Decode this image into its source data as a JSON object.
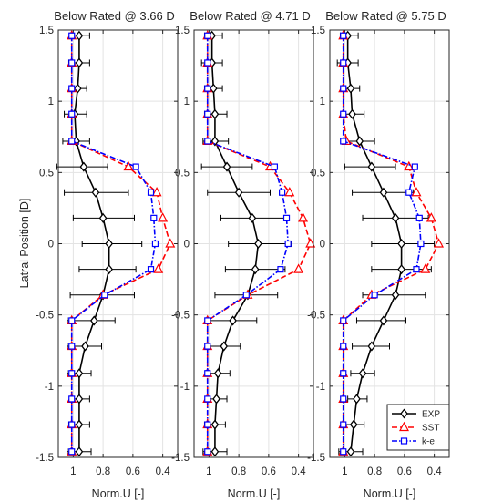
{
  "chart_data": {
    "type": "line",
    "ylabel": "Latral Position [D]",
    "xlabel": "Norm.U [-]",
    "ylim": [
      -1.5,
      1.5
    ],
    "yticks": [
      -1.5,
      -1,
      -0.5,
      0,
      0.5,
      1,
      1.5
    ],
    "xlim": [
      1.1,
      0.3
    ],
    "xaxis_reversed": true,
    "xticks": [
      1,
      0.8,
      0.6,
      0.4
    ],
    "grid": true,
    "legend_position": "bottom-right of right panel",
    "y": [
      1.46,
      1.27,
      1.09,
      0.91,
      0.72,
      0.54,
      0.36,
      0.18,
      0,
      -0.18,
      -0.36,
      -0.54,
      -0.72,
      -0.91,
      -1.09,
      -1.27,
      -1.46
    ],
    "series_style": {
      "EXP": {
        "color": "#000000",
        "dash": "",
        "marker": "diamond"
      },
      "SST": {
        "color": "#ff0000",
        "dash": "6,3",
        "marker": "triangle"
      },
      "k-e": {
        "color": "#0000ff",
        "dash": "6,2,1.5,2",
        "marker": "square"
      }
    },
    "panels": [
      {
        "title": "Below Rated @ 3.66 D",
        "series": [
          {
            "name": "EXP",
            "values": [
              0.96,
              0.96,
              0.97,
              0.99,
              0.98,
              0.93,
              0.85,
              0.8,
              0.76,
              0.76,
              0.8,
              0.86,
              0.92,
              0.96,
              0.96,
              0.96,
              0.96
            ],
            "err_minus": [
              0.06,
              0.07,
              0.05,
              0.07,
              0.09,
              0.18,
              0.21,
              0.2,
              0.18,
              0.2,
              0.22,
              0.18,
              0.12,
              0.08,
              0.06,
              0.07,
              0.08
            ],
            "err_plus": [
              0.07,
              0.07,
              0.06,
              0.08,
              0.09,
              0.16,
              0.22,
              0.21,
              0.22,
              0.18,
              0.21,
              0.14,
              0.11,
              0.08,
              0.07,
              0.07,
              0.08
            ]
          },
          {
            "name": "SST",
            "values": [
              1.01,
              1.01,
              1.01,
              1.01,
              1.01,
              0.63,
              0.44,
              0.4,
              0.35,
              0.43,
              0.8,
              1.01,
              1.01,
              1.01,
              1.01,
              1.01,
              1.01
            ]
          },
          {
            "name": "k-e",
            "values": [
              1.01,
              1.01,
              1.01,
              1.01,
              1.01,
              0.58,
              0.48,
              0.46,
              0.45,
              0.48,
              0.79,
              1.01,
              1.01,
              1.01,
              1.01,
              1.01,
              1.01
            ]
          }
        ]
      },
      {
        "title": "Below Rated @ 4.71 D",
        "series": [
          {
            "name": "EXP",
            "values": [
              0.98,
              0.98,
              0.97,
              0.96,
              0.96,
              0.88,
              0.8,
              0.71,
              0.67,
              0.69,
              0.74,
              0.84,
              0.9,
              0.94,
              0.95,
              0.96,
              0.96
            ],
            "err_minus": [
              0.05,
              0.07,
              0.06,
              0.07,
              0.08,
              0.17,
              0.21,
              0.21,
              0.2,
              0.2,
              0.22,
              0.18,
              0.12,
              0.08,
              0.06,
              0.07,
              0.08
            ],
            "err_plus": [
              0.07,
              0.07,
              0.06,
              0.08,
              0.09,
              0.17,
              0.21,
              0.22,
              0.22,
              0.2,
              0.2,
              0.16,
              0.11,
              0.08,
              0.07,
              0.07,
              0.08
            ]
          },
          {
            "name": "SST",
            "values": [
              1.01,
              1.01,
              1.01,
              1.01,
              1.01,
              0.59,
              0.46,
              0.37,
              0.32,
              0.4,
              0.74,
              1.01,
              1.01,
              1.01,
              1.01,
              1.01,
              1.01
            ]
          },
          {
            "name": "k-e",
            "values": [
              1.01,
              1.01,
              1.01,
              1.01,
              1.01,
              0.56,
              0.51,
              0.48,
              0.47,
              0.52,
              0.75,
              1.01,
              1.01,
              1.01,
              1.01,
              1.01,
              1.01
            ]
          }
        ]
      },
      {
        "title": "Below Rated @ 5.75 D",
        "series": [
          {
            "name": "EXP",
            "values": [
              0.98,
              0.98,
              0.96,
              0.95,
              0.9,
              0.82,
              0.74,
              0.66,
              0.62,
              0.62,
              0.66,
              0.74,
              0.82,
              0.88,
              0.92,
              0.94,
              0.96
            ],
            "err_minus": [
              0.05,
              0.07,
              0.06,
              0.07,
              0.09,
              0.18,
              0.21,
              0.22,
              0.2,
              0.2,
              0.22,
              0.18,
              0.13,
              0.08,
              0.06,
              0.07,
              0.08
            ],
            "err_plus": [
              0.07,
              0.07,
              0.06,
              0.08,
              0.1,
              0.16,
              0.2,
              0.22,
              0.22,
              0.2,
              0.2,
              0.15,
              0.12,
              0.08,
              0.07,
              0.07,
              0.08
            ]
          },
          {
            "name": "SST",
            "values": [
              1.01,
              1.01,
              1.01,
              1.01,
              0.99,
              0.57,
              0.52,
              0.42,
              0.37,
              0.46,
              0.82,
              1.01,
              1.01,
              1.01,
              1.01,
              1.01,
              1.01
            ]
          },
          {
            "name": "k-e",
            "values": [
              1.01,
              1.01,
              1.01,
              1.01,
              1.01,
              0.53,
              0.57,
              0.5,
              0.49,
              0.52,
              0.8,
              1.01,
              1.01,
              1.01,
              1.01,
              1.01,
              1.01
            ]
          }
        ]
      }
    ]
  }
}
